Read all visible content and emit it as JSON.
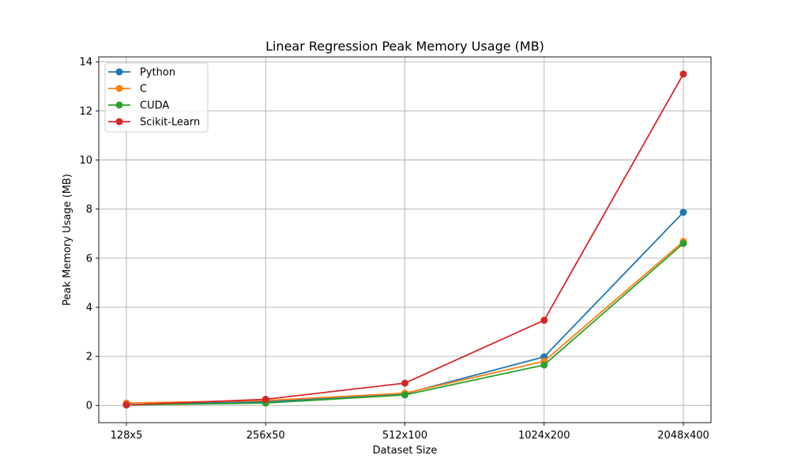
{
  "chart_data": {
    "type": "line",
    "title": "Linear Regression Peak Memory Usage (MB)",
    "xlabel": "Dataset Size",
    "ylabel": "Peak Memory Usage (MB)",
    "categories": [
      "128x5",
      "256x50",
      "512x100",
      "1024x200",
      "2048x400"
    ],
    "ylim": [
      -0.7,
      14.2
    ],
    "yticks": [
      0,
      2,
      4,
      6,
      8,
      10,
      12,
      14
    ],
    "grid": true,
    "legend_position": "top-left",
    "marker": "circle",
    "series": [
      {
        "name": "Python",
        "color": "#1f77b4",
        "values": [
          0.03,
          0.15,
          0.48,
          1.98,
          7.87
        ]
      },
      {
        "name": "C",
        "color": "#ff7f0e",
        "values": [
          0.1,
          0.2,
          0.5,
          1.8,
          6.68
        ]
      },
      {
        "name": "CUDA",
        "color": "#2ca02c",
        "values": [
          0.02,
          0.1,
          0.43,
          1.65,
          6.6
        ]
      },
      {
        "name": "Scikit-Learn",
        "color": "#d62728",
        "values": [
          0.02,
          0.25,
          0.91,
          3.47,
          13.5
        ]
      }
    ]
  }
}
